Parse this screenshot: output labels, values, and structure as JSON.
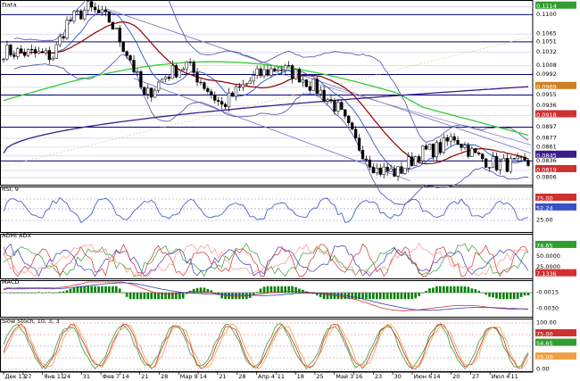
{
  "chart_data": [
    {
      "type": "candlestick",
      "title": "Data",
      "y_axis_labels": [
        "0.1114",
        "0.1100",
        "0.1065",
        "0.1051",
        "0.1032",
        "0.1008",
        "0.0992",
        "0.0969",
        "0.0955",
        "0.0936",
        "0.0918",
        "0.0897",
        "0.0877",
        "0.0861",
        "0.0845",
        "0.0836",
        "0.0819",
        "0.0806"
      ],
      "ylim": [
        0.0798,
        0.112
      ],
      "x_axis_labels": [
        "Дек 13",
        "27",
        "Янв 11",
        "24",
        "31",
        "Фев 7",
        "14",
        "21",
        "28",
        "Мар 9",
        "14",
        "21",
        "28",
        "Апр 4",
        "11",
        "18",
        "25",
        "Май 3",
        "16",
        "23",
        "30",
        "Июн 6",
        "14",
        "20",
        "27",
        "Июл 4",
        "11"
      ],
      "overlays": [
        "bollinger-bands",
        "moving-average-fast",
        "moving-average-medium",
        "moving-average-long",
        "trend-channel"
      ]
    },
    {
      "type": "line",
      "title": "RSI, 9",
      "y_axis_labels": [
        "75.00",
        "52.24",
        "25.00"
      ],
      "ylim": [
        0,
        100
      ]
    },
    {
      "type": "line",
      "title": "ADMI ADX",
      "y_axis_labels": [
        "74.65",
        "50.0000",
        "25.0000",
        "7.1336"
      ],
      "ylim": [
        0,
        100
      ]
    },
    {
      "type": "histogram",
      "title": "MACD",
      "y_axis_labels": [
        "-0.0015",
        "-0.0030"
      ],
      "ylim": [
        -0.004,
        0.002
      ]
    },
    {
      "type": "line",
      "title": "Slow Stoch, 10, 3, 3",
      "y_axis_labels": [
        "100.00",
        "75.00",
        "54.65",
        "25.00",
        "0.00"
      ],
      "ylim": [
        0,
        100
      ]
    }
  ],
  "colors": {
    "price_up": "#ffffff",
    "price_down": "#000000",
    "bollinger": "#4a4aa8",
    "ma_fast": "#8b0000",
    "ma_green": "#33cc33",
    "ma_purple": "#3a1d8c",
    "hline": "#000080",
    "macd_hist": "#008000",
    "rsi": "#3b4fc8"
  }
}
